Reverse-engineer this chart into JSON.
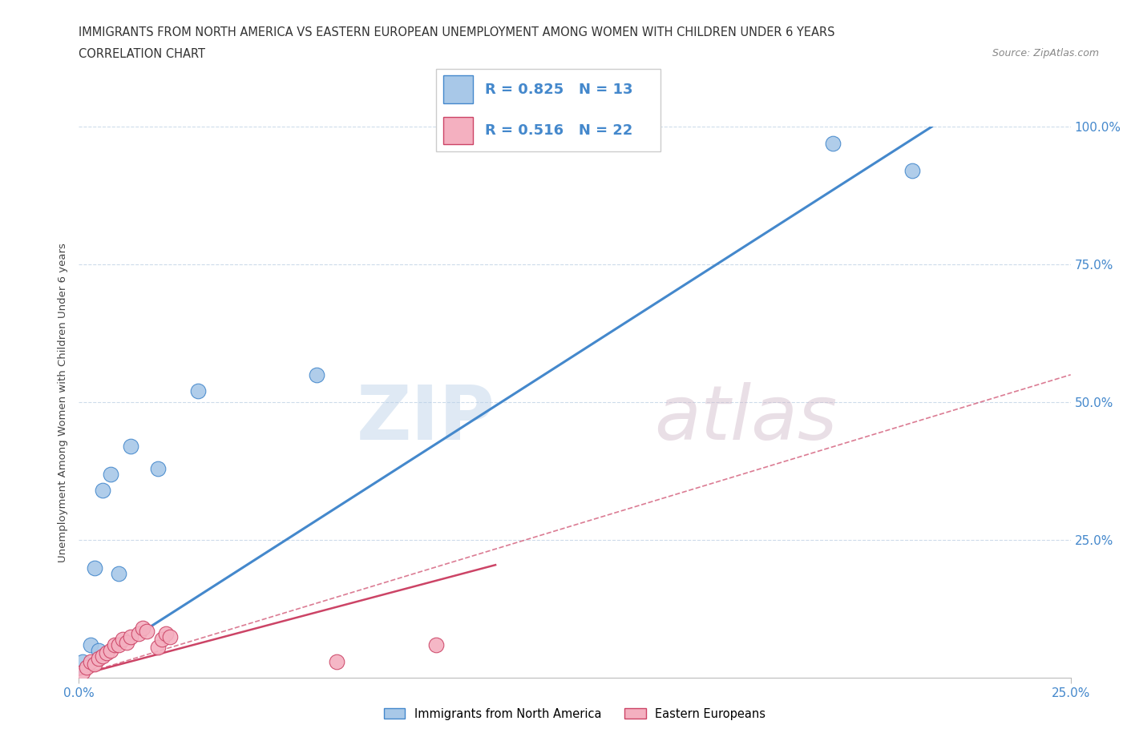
{
  "title_line1": "IMMIGRANTS FROM NORTH AMERICA VS EASTERN EUROPEAN UNEMPLOYMENT AMONG WOMEN WITH CHILDREN UNDER 6 YEARS",
  "title_line2": "CORRELATION CHART",
  "source": "Source: ZipAtlas.com",
  "ylabel": "Unemployment Among Women with Children Under 6 years",
  "xlim": [
    0,
    0.25
  ],
  "ylim": [
    0,
    1.0
  ],
  "blue_label": "Immigrants from North America",
  "pink_label": "Eastern Europeans",
  "r_blue": 0.825,
  "n_blue": 13,
  "r_pink": 0.516,
  "n_pink": 22,
  "blue_color": "#a8c8e8",
  "pink_color": "#f4b0c0",
  "blue_line_color": "#4488cc",
  "pink_line_color": "#cc4466",
  "text_color": "#4488cc",
  "grid_color": "#c8d8e8",
  "watermark_zip": "ZIP",
  "watermark_atlas": "atlas",
  "blue_scatter_x": [
    0.001,
    0.003,
    0.004,
    0.005,
    0.006,
    0.008,
    0.01,
    0.013,
    0.02,
    0.03,
    0.06,
    0.19,
    0.21
  ],
  "blue_scatter_y": [
    0.03,
    0.06,
    0.2,
    0.05,
    0.34,
    0.37,
    0.19,
    0.42,
    0.38,
    0.52,
    0.55,
    0.97,
    0.92
  ],
  "pink_scatter_x": [
    0.001,
    0.002,
    0.003,
    0.004,
    0.005,
    0.006,
    0.007,
    0.008,
    0.009,
    0.01,
    0.011,
    0.012,
    0.013,
    0.015,
    0.016,
    0.017,
    0.02,
    0.021,
    0.022,
    0.023,
    0.065,
    0.09
  ],
  "pink_scatter_y": [
    0.01,
    0.02,
    0.03,
    0.025,
    0.035,
    0.04,
    0.045,
    0.05,
    0.06,
    0.06,
    0.07,
    0.065,
    0.075,
    0.08,
    0.09,
    0.085,
    0.055,
    0.07,
    0.08,
    0.075,
    0.03,
    0.06
  ],
  "blue_line_x": [
    0.0,
    0.215
  ],
  "blue_line_y": [
    0.01,
    1.0
  ],
  "pink_solid_line_x": [
    0.0,
    0.105
  ],
  "pink_solid_line_y": [
    0.005,
    0.205
  ],
  "pink_dash_line_x": [
    0.0,
    0.25
  ],
  "pink_dash_line_y": [
    0.005,
    0.55
  ],
  "marker_size": 180,
  "ytick_vals": [
    0.25,
    0.5,
    0.75,
    1.0
  ],
  "ytick_labels": [
    "25.0%",
    "50.0%",
    "75.0%",
    "100.0%"
  ]
}
